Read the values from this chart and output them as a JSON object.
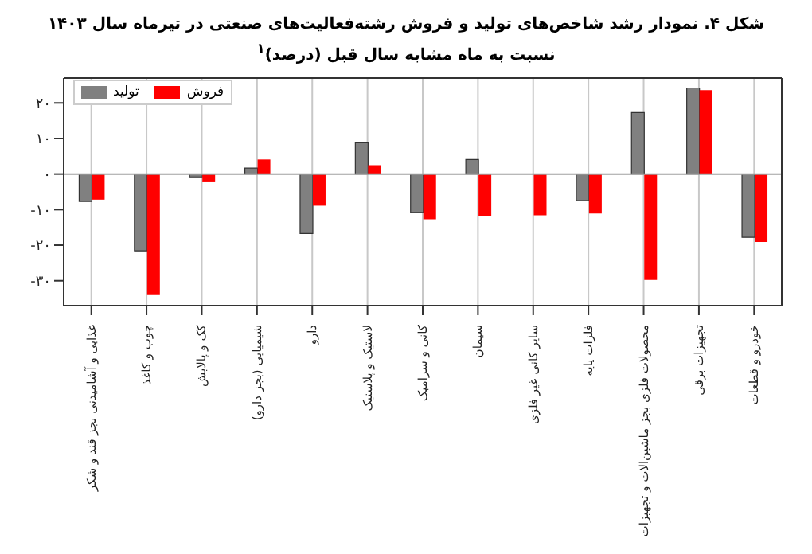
{
  "chart_data": {
    "type": "bar",
    "title": "شکل ۴. نمودار رشد شاخص‌های تولید و فروش رشته‌فعالیت‌های صنعتی در تیرماه سال ۱۴۰۳",
    "subtitle": "نسبت به ماه مشابه سال قبل (درصد)$^{۱}$",
    "categories": [
      "غذایی و آشامیدنی بجز قند و شکر",
      "چوب و کاغذ",
      "کک و پالایش",
      "شیمیایی (بجز دارو)",
      "دارو",
      "لاستیک و پلاستیک",
      "کانی و سرامیک",
      "سیمان",
      "سایر کانی غیر فلزی",
      "فلزات پایه",
      "محصولات فلزی بجز ماشین‌الات و تجهیزات",
      "تجهیزات برقی",
      "خودرو و قطعات"
    ],
    "series": [
      {
        "name": "تولید",
        "color": "#808080",
        "values": [
          -7.7,
          -21.6,
          -0.8,
          1.7,
          -16.7,
          8.8,
          -10.8,
          4.1,
          0,
          -7.5,
          17.3,
          24.2,
          -17.8
        ]
      },
      {
        "name": "فروش",
        "color": "#ff0000",
        "values": [
          -7.2,
          -33.8,
          -2.3,
          4.1,
          -8.9,
          2.5,
          -12.7,
          -11.7,
          -11.6,
          -11.1,
          -29.8,
          23.6,
          -19.1
        ]
      }
    ],
    "ylim": [
      -37,
      27
    ],
    "yticks": [
      {
        "value": -30,
        "label": "-۳۰"
      },
      {
        "value": -20,
        "label": "-۲۰"
      },
      {
        "value": -10,
        "label": "-۱۰"
      },
      {
        "value": 0,
        "label": "۰"
      },
      {
        "value": 10,
        "label": "۱۰"
      },
      {
        "value": 20,
        "label": "۲۰"
      }
    ],
    "grid": "x",
    "legend": "top left",
    "ref_lines": [
      {
        "axis": "y",
        "value": 0,
        "color": "#a0a0a0"
      }
    ]
  }
}
